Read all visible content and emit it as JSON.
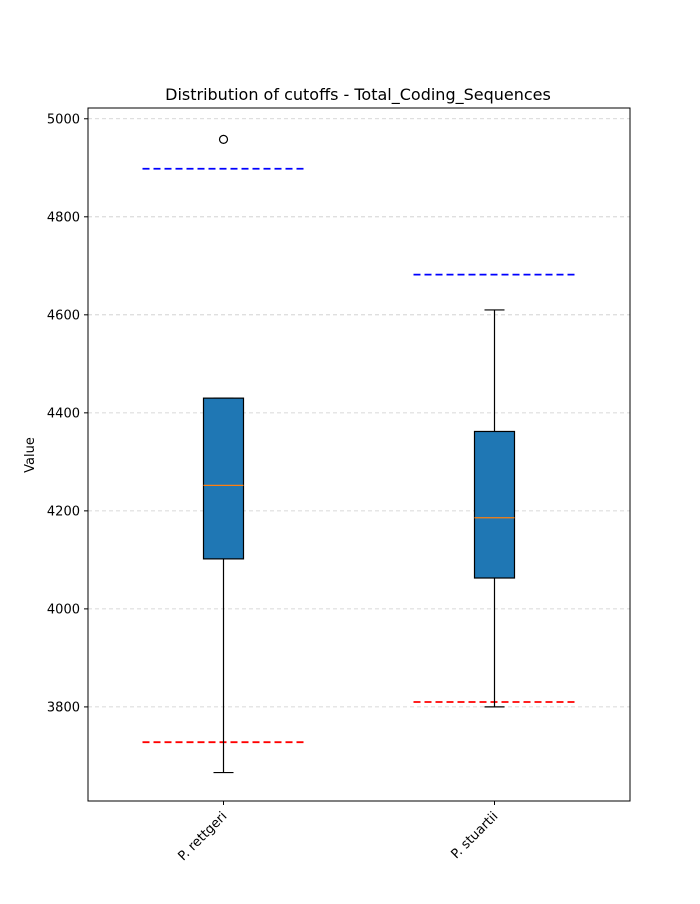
{
  "chart_data": {
    "type": "boxplot",
    "title": "Distribution of cutoffs - Total_Coding_Sequences",
    "xlabel": "",
    "ylabel": "Value",
    "categories": [
      "P. rettgeri",
      "P. stuartii"
    ],
    "y_ticks": [
      3800,
      4000,
      4200,
      4400,
      4600,
      4800,
      5000
    ],
    "y_tick_labels": [
      "3800",
      "4000",
      "4200",
      "4400",
      "4600",
      "4800",
      "5000"
    ],
    "ylim": [
      3608,
      5022
    ],
    "grid": "horizontal dashed",
    "boxes": [
      {
        "category": "P. rettgeri",
        "whisker_low": 3666,
        "q1": 4102,
        "median": 4252,
        "q3": 4430,
        "whisker_high": 4430,
        "outliers": [
          4958
        ],
        "upper_cutoff": 4898,
        "lower_cutoff": 3728
      },
      {
        "category": "P. stuartii",
        "whisker_low": 3800,
        "q1": 4063,
        "median": 4186,
        "q3": 4362,
        "whisker_high": 4610,
        "outliers": [],
        "upper_cutoff": 4682,
        "lower_cutoff": 3810
      }
    ],
    "colors": {
      "box_fill": "#1f77b4",
      "median": "#ff7f0e",
      "upper_cutoff": "#0000ff",
      "lower_cutoff": "#ff0000",
      "grid": "#cccccc"
    }
  }
}
